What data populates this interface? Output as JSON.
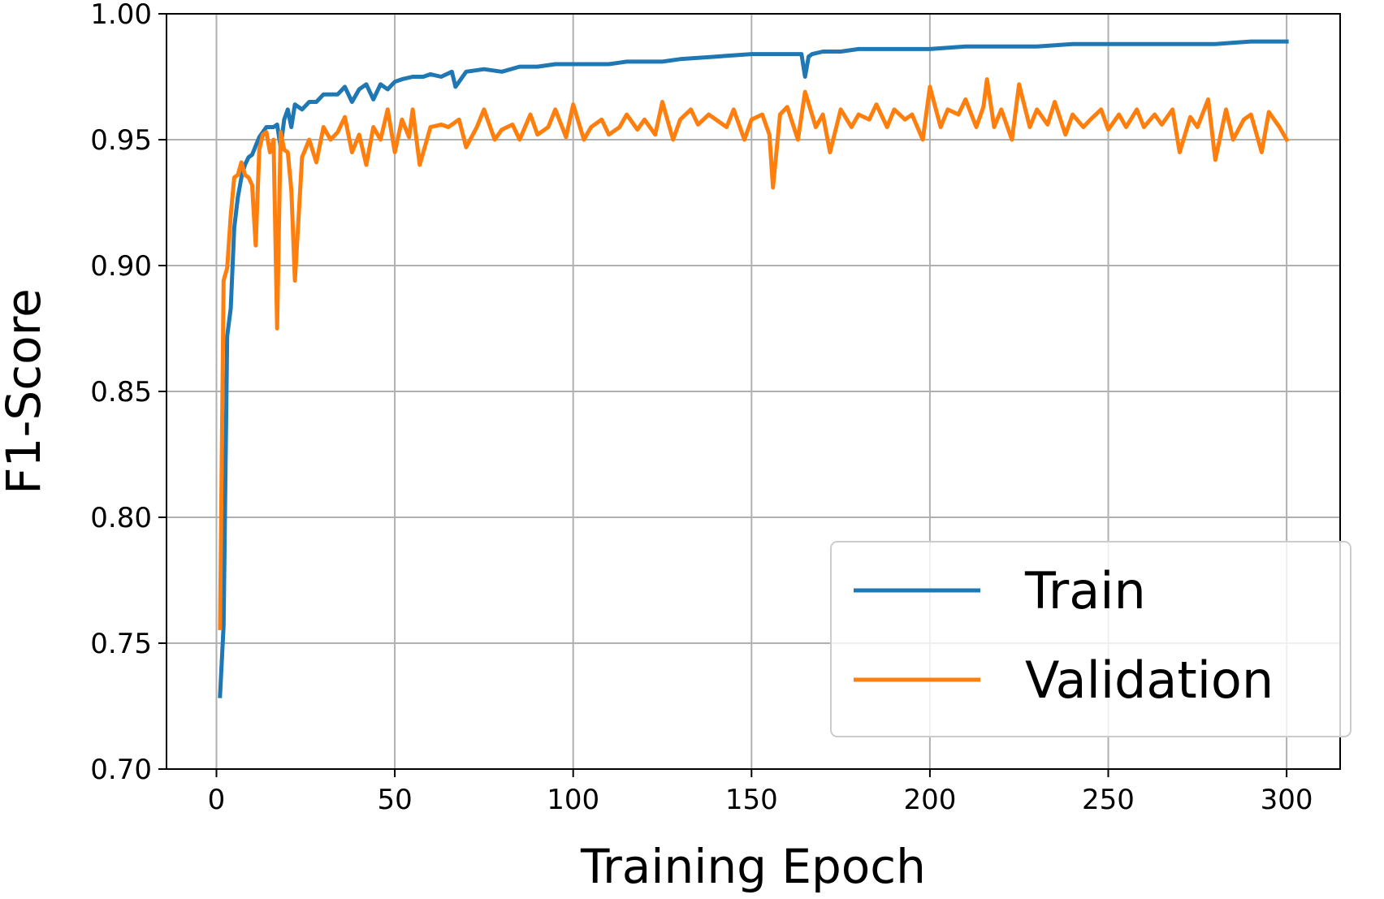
{
  "chart_data": {
    "type": "line",
    "xlabel": "Training Epoch",
    "ylabel": "F1-Score",
    "xlim": [
      -14,
      315
    ],
    "ylim": [
      0.7,
      1.0
    ],
    "xticks": [
      0,
      50,
      100,
      150,
      200,
      250,
      300
    ],
    "xtick_labels": [
      "0",
      "50",
      "100",
      "150",
      "200",
      "250",
      "300"
    ],
    "yticks": [
      0.7,
      0.75,
      0.8,
      0.85,
      0.9,
      0.95,
      1.0
    ],
    "ytick_labels": [
      "0.70",
      "0.75",
      "0.80",
      "0.85",
      "0.90",
      "0.95",
      "1.00"
    ],
    "grid": true,
    "legend_position": "lower-right",
    "series": [
      {
        "name": "Train",
        "color": "#1f77b4",
        "x": [
          1,
          2,
          3,
          4,
          5,
          6,
          7,
          8,
          9,
          10,
          12,
          14,
          16,
          17,
          18,
          19,
          20,
          21,
          22,
          24,
          26,
          28,
          30,
          32,
          34,
          36,
          38,
          40,
          42,
          44,
          46,
          48,
          50,
          52,
          55,
          58,
          60,
          63,
          66,
          67,
          70,
          75,
          80,
          85,
          90,
          95,
          100,
          105,
          110,
          115,
          120,
          125,
          130,
          140,
          150,
          155,
          160,
          164,
          165,
          166,
          167,
          170,
          175,
          180,
          190,
          200,
          210,
          220,
          230,
          240,
          250,
          260,
          270,
          280,
          290,
          300
        ],
        "y": [
          0.729,
          0.757,
          0.872,
          0.883,
          0.915,
          0.927,
          0.935,
          0.94,
          0.943,
          0.944,
          0.951,
          0.955,
          0.955,
          0.956,
          0.947,
          0.958,
          0.962,
          0.955,
          0.964,
          0.962,
          0.965,
          0.965,
          0.968,
          0.968,
          0.968,
          0.971,
          0.965,
          0.97,
          0.972,
          0.966,
          0.972,
          0.97,
          0.973,
          0.974,
          0.975,
          0.975,
          0.976,
          0.975,
          0.977,
          0.971,
          0.977,
          0.978,
          0.977,
          0.979,
          0.979,
          0.98,
          0.98,
          0.98,
          0.98,
          0.981,
          0.981,
          0.981,
          0.982,
          0.983,
          0.984,
          0.984,
          0.984,
          0.984,
          0.975,
          0.983,
          0.984,
          0.985,
          0.985,
          0.986,
          0.986,
          0.986,
          0.987,
          0.987,
          0.987,
          0.988,
          0.988,
          0.988,
          0.988,
          0.988,
          0.989,
          0.989
        ]
      },
      {
        "name": "Validation",
        "color": "#ff7f0e",
        "x": [
          1,
          2,
          3,
          4,
          5,
          6,
          7,
          8,
          9,
          10,
          11,
          12,
          13,
          14,
          15,
          16,
          17,
          18,
          19,
          20,
          21,
          22,
          24,
          26,
          28,
          30,
          32,
          34,
          36,
          38,
          40,
          42,
          44,
          46,
          48,
          50,
          52,
          54,
          55,
          57,
          60,
          63,
          65,
          68,
          70,
          73,
          75,
          78,
          80,
          83,
          85,
          88,
          90,
          93,
          95,
          98,
          100,
          103,
          105,
          108,
          110,
          113,
          115,
          118,
          120,
          123,
          125,
          128,
          130,
          133,
          135,
          138,
          140,
          143,
          145,
          148,
          150,
          153,
          155,
          156,
          158,
          160,
          163,
          165,
          168,
          170,
          172,
          175,
          178,
          180,
          183,
          185,
          188,
          190,
          193,
          195,
          198,
          200,
          203,
          205,
          208,
          210,
          213,
          215,
          216,
          218,
          220,
          223,
          225,
          228,
          230,
          233,
          235,
          238,
          240,
          243,
          245,
          248,
          250,
          253,
          255,
          258,
          260,
          263,
          265,
          268,
          270,
          273,
          275,
          278,
          280,
          283,
          285,
          288,
          290,
          293,
          295,
          298,
          300
        ],
        "y": [
          0.756,
          0.894,
          0.899,
          0.92,
          0.935,
          0.936,
          0.941,
          0.936,
          0.935,
          0.932,
          0.908,
          0.946,
          0.952,
          0.953,
          0.945,
          0.95,
          0.875,
          0.953,
          0.946,
          0.945,
          0.93,
          0.894,
          0.943,
          0.95,
          0.941,
          0.955,
          0.95,
          0.953,
          0.959,
          0.945,
          0.952,
          0.94,
          0.955,
          0.95,
          0.962,
          0.945,
          0.958,
          0.951,
          0.962,
          0.94,
          0.955,
          0.956,
          0.955,
          0.958,
          0.947,
          0.955,
          0.962,
          0.95,
          0.954,
          0.956,
          0.95,
          0.96,
          0.952,
          0.955,
          0.962,
          0.951,
          0.964,
          0.95,
          0.955,
          0.958,
          0.952,
          0.955,
          0.96,
          0.954,
          0.958,
          0.952,
          0.965,
          0.95,
          0.958,
          0.962,
          0.956,
          0.96,
          0.958,
          0.955,
          0.962,
          0.95,
          0.958,
          0.96,
          0.952,
          0.931,
          0.96,
          0.963,
          0.95,
          0.969,
          0.955,
          0.96,
          0.945,
          0.962,
          0.955,
          0.96,
          0.958,
          0.964,
          0.955,
          0.962,
          0.958,
          0.96,
          0.95,
          0.971,
          0.955,
          0.962,
          0.96,
          0.966,
          0.955,
          0.963,
          0.974,
          0.955,
          0.962,
          0.95,
          0.972,
          0.955,
          0.962,
          0.956,
          0.965,
          0.952,
          0.96,
          0.955,
          0.958,
          0.962,
          0.954,
          0.96,
          0.955,
          0.962,
          0.955,
          0.96,
          0.956,
          0.962,
          0.945,
          0.959,
          0.955,
          0.966,
          0.942,
          0.962,
          0.95,
          0.958,
          0.96,
          0.945,
          0.961,
          0.955,
          0.95
        ]
      }
    ]
  }
}
